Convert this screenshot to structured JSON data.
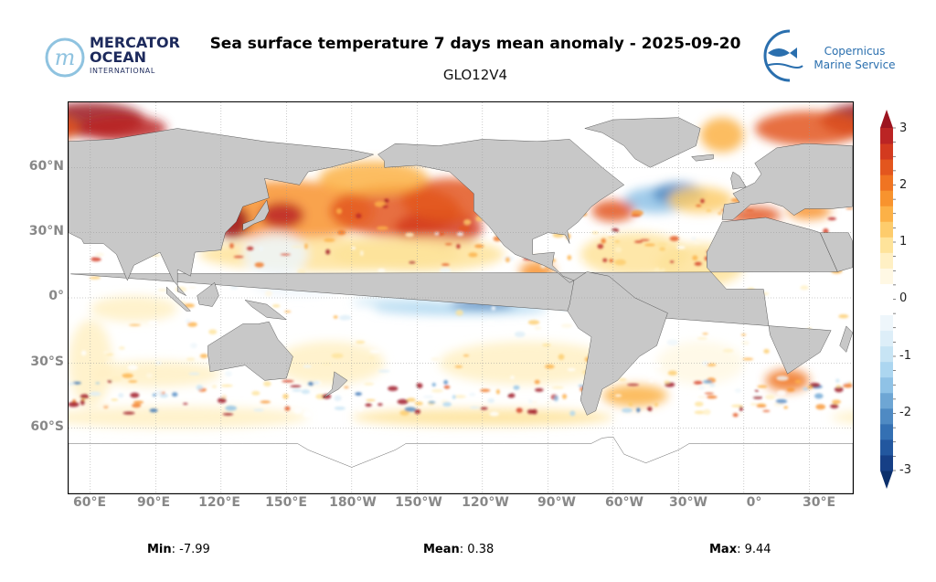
{
  "header": {
    "title": "Sea surface temperature 7 days mean anomaly - 2025-09-20",
    "subtitle": "GLO12V4"
  },
  "logos": {
    "mercator": {
      "line1": "MERCATOR",
      "line2": "OCEAN",
      "line3": "INTERNATIONAL"
    },
    "copernicus": {
      "line1": "Copernicus",
      "line2": "Marine Service"
    }
  },
  "map": {
    "lat_labels": [
      "60°N",
      "30°N",
      "0°",
      "30°S",
      "60°S"
    ],
    "lon_labels": [
      "60°E",
      "90°E",
      "120°E",
      "150°E",
      "180°W",
      "150°W",
      "120°W",
      "90°W",
      "60°W",
      "30°W",
      "0°",
      "30°E"
    ],
    "land_color": "#c8c8c8"
  },
  "colorbar": {
    "ticks": [
      "3",
      "2",
      "1",
      "0",
      "-1",
      "-2",
      "-3"
    ],
    "range": [
      -3,
      3
    ],
    "colors": [
      "#0b2f6b",
      "#163f86",
      "#22579f",
      "#3470b3",
      "#4f8ac3",
      "#6ea6d4",
      "#8fc2e6",
      "#acd6f0",
      "#c7e4f4",
      "#ddeef8",
      "#eef6fb",
      "#ffffff",
      "#ffffff",
      "#fff8e4",
      "#fff0c4",
      "#fee39a",
      "#fdcc6c",
      "#fcb147",
      "#f8932e",
      "#f07422",
      "#e3561e",
      "#d33a1f",
      "#bb2424",
      "#9c1420"
    ]
  },
  "stats": {
    "min_label": "Min",
    "min_value": ": -7.99",
    "mean_label": "Mean",
    "mean_value": ": 0.38",
    "max_label": "Max",
    "max_value": ": 9.44"
  }
}
